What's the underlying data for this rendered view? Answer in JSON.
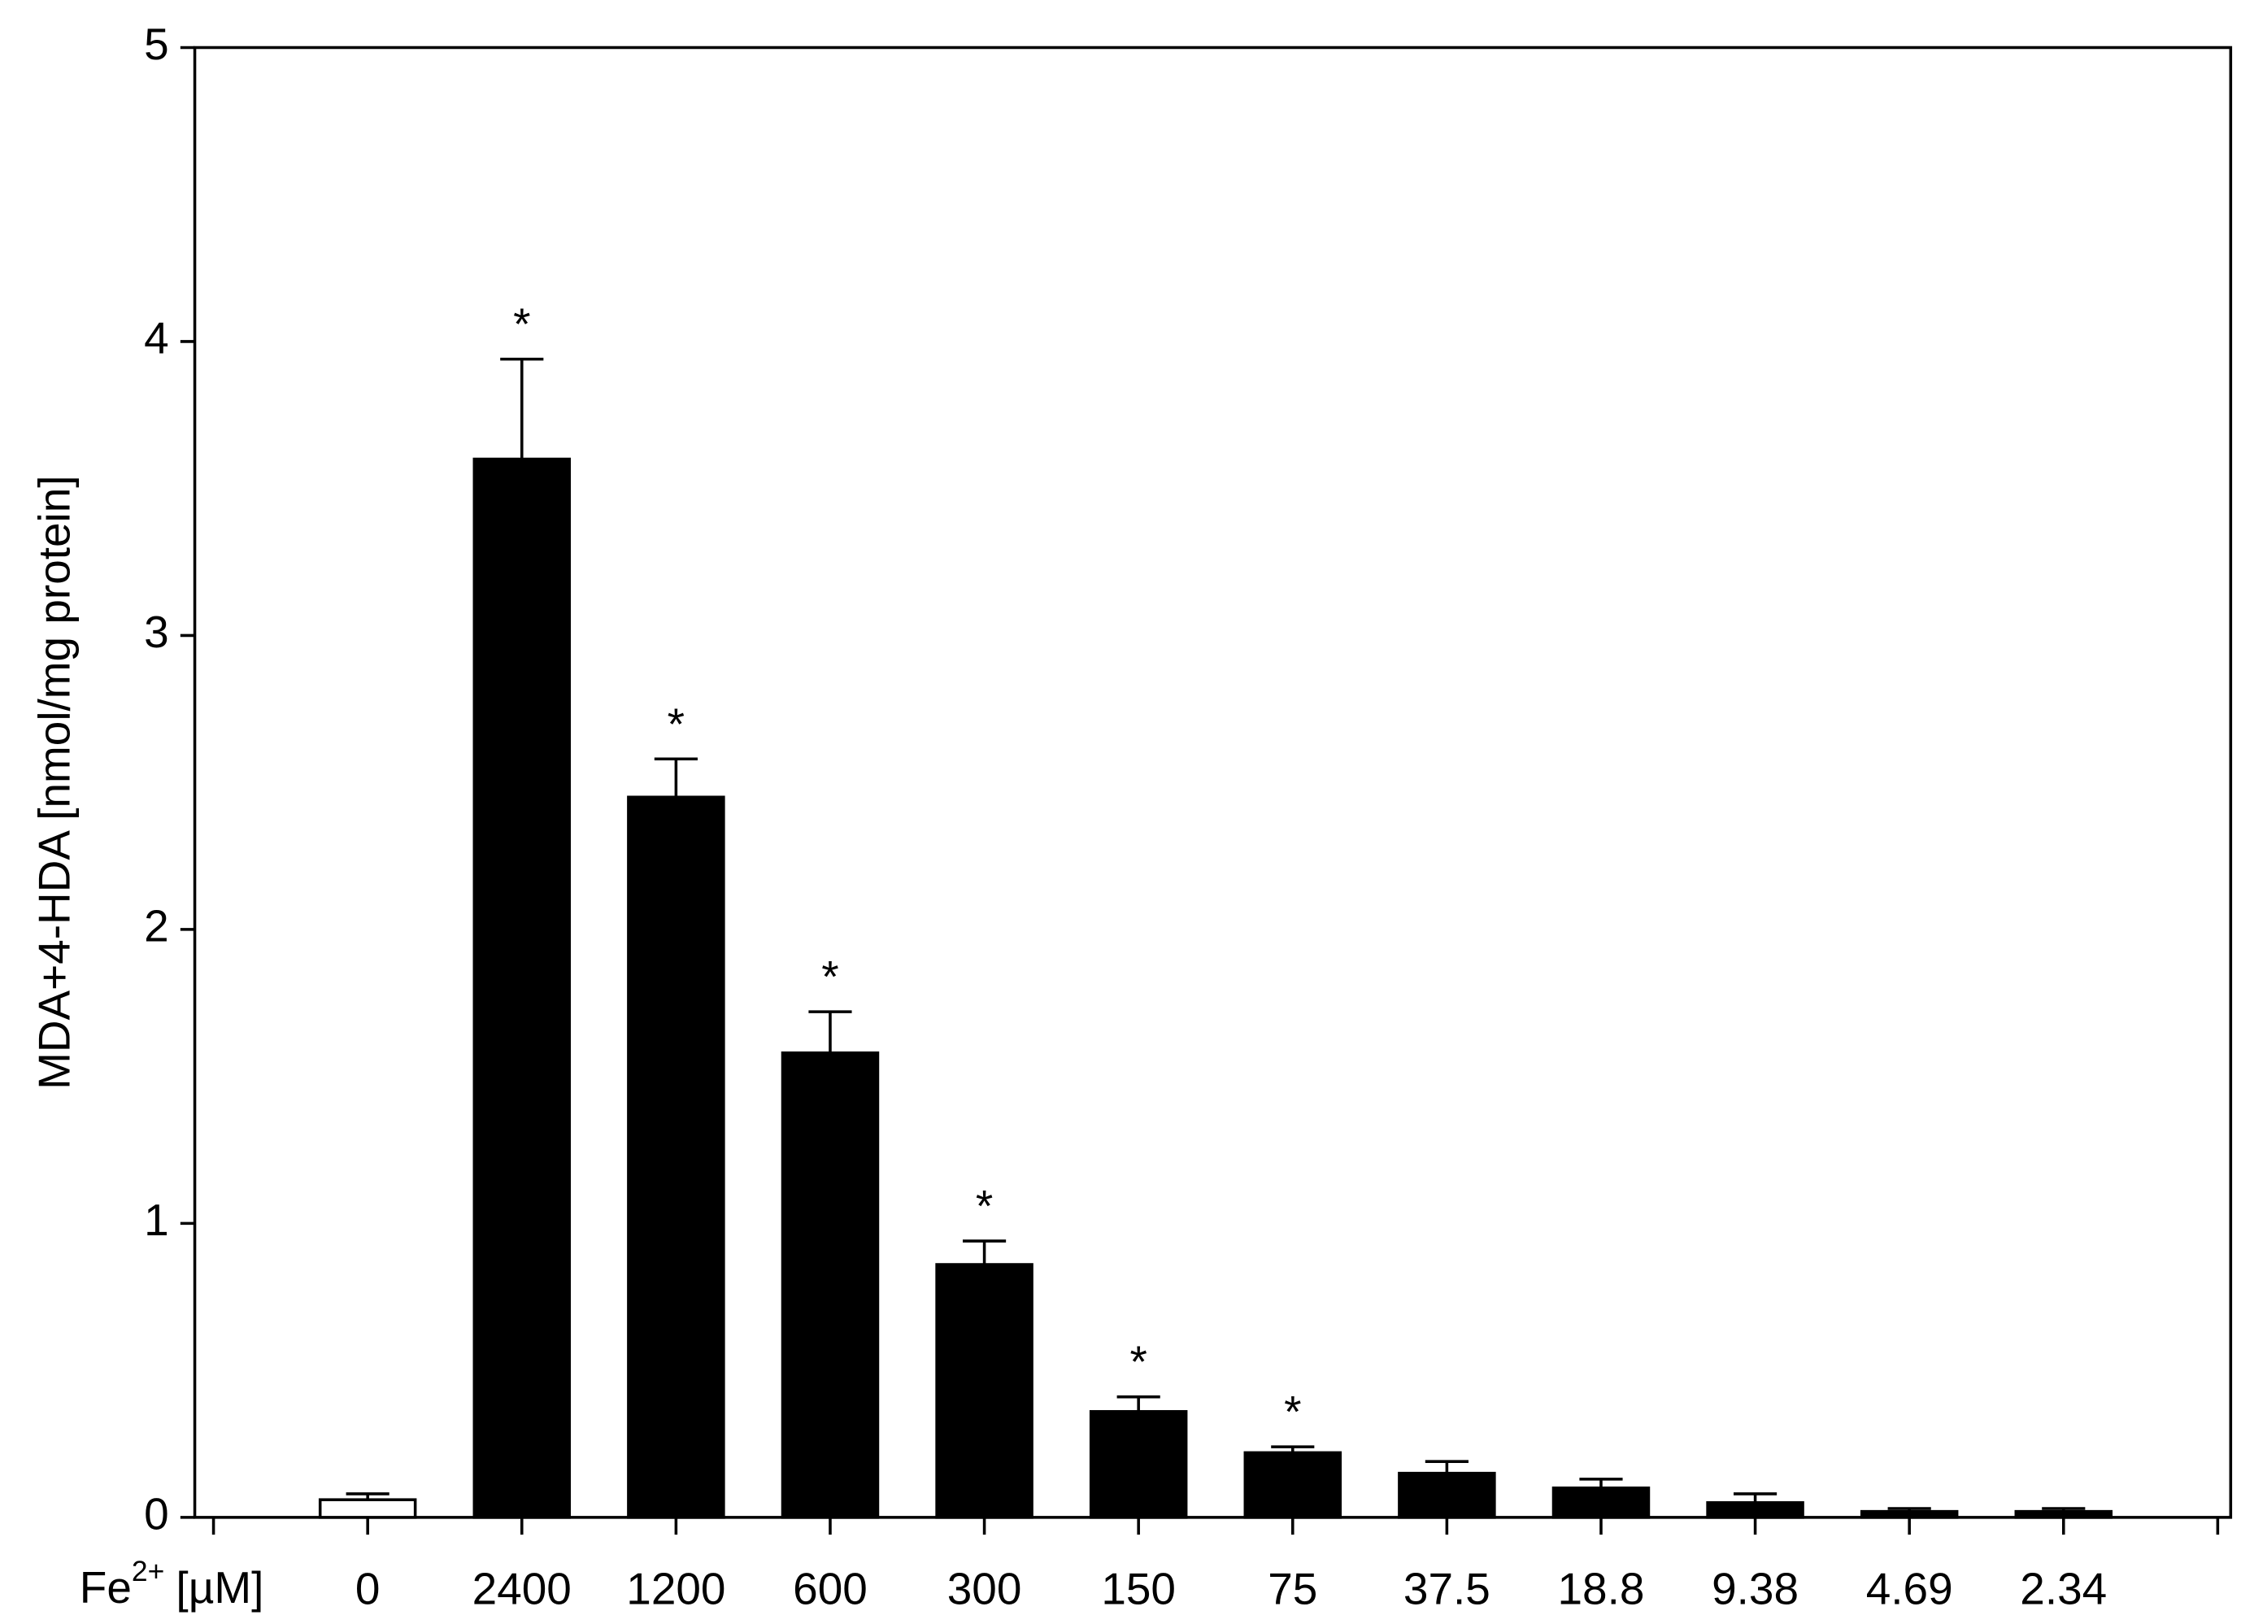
{
  "chart_data": {
    "type": "bar",
    "y_label": "MDA+4-HDA [nmol/mg protein]",
    "x_label": {
      "base": "Fe",
      "sup": "2+",
      "unit": "[µM]"
    },
    "categories": [
      "0",
      "2400",
      "1200",
      "600",
      "300",
      "150",
      "75",
      "37.5",
      "18.8",
      "9.38",
      "4.69",
      "2.34"
    ],
    "values": [
      0.06,
      3.6,
      2.45,
      1.58,
      0.86,
      0.36,
      0.22,
      0.15,
      0.1,
      0.05,
      0.02,
      0.02
    ],
    "errors": [
      0.02,
      0.34,
      0.13,
      0.14,
      0.08,
      0.05,
      0.02,
      0.04,
      0.03,
      0.03,
      0.01,
      0.01
    ],
    "colors": [
      "#ffffff",
      "#000000",
      "#000000",
      "#000000",
      "#000000",
      "#000000",
      "#000000",
      "#000000",
      "#000000",
      "#000000",
      "#000000",
      "#000000"
    ],
    "significance": [
      null,
      "*",
      "*",
      "*",
      "*",
      "*",
      "*",
      null,
      null,
      null,
      null,
      null
    ],
    "ylim": [
      0,
      5
    ],
    "yticks": [
      0,
      1,
      2,
      3,
      4,
      5
    ]
  }
}
